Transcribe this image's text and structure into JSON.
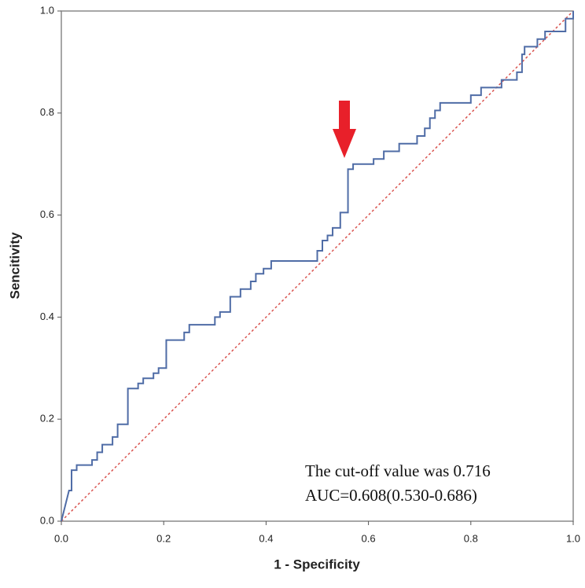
{
  "chart_data": {
    "type": "line",
    "xlabel": "1 - Specificity",
    "ylabel": "Sencitivity",
    "xlim": [
      0,
      1
    ],
    "ylim": [
      0,
      1
    ],
    "xticks": [
      {
        "value": 0,
        "label": "0.0"
      },
      0.2,
      0.4,
      0.6,
      0.8,
      {
        "value": 1,
        "label": "1.0"
      }
    ],
    "yticks": [
      {
        "value": 0,
        "label": "0.0"
      },
      0.2,
      0.4,
      0.6,
      0.8,
      {
        "value": 1,
        "label": "1.0"
      }
    ],
    "annotations": [
      "The cut-off value was 0.716",
      "AUC=0.608(0.530-0.686)"
    ],
    "series": [
      {
        "color": "#4f6ca6",
        "style": "step",
        "x": [
          0,
          0.005,
          0.01,
          0.015,
          0.02,
          0.02,
          0.03,
          0.03,
          0.06,
          0.06,
          0.07,
          0.07,
          0.08,
          0.08,
          0.1,
          0.1,
          0.11,
          0.11,
          0.13,
          0.13,
          0.15,
          0.15,
          0.16,
          0.16,
          0.18,
          0.18,
          0.19,
          0.19,
          0.205,
          0.205,
          0.24,
          0.24,
          0.25,
          0.25,
          0.3,
          0.3,
          0.31,
          0.31,
          0.33,
          0.33,
          0.35,
          0.35,
          0.37,
          0.37,
          0.38,
          0.38,
          0.395,
          0.395,
          0.41,
          0.41,
          0.5,
          0.5,
          0.51,
          0.51,
          0.52,
          0.52,
          0.53,
          0.53,
          0.545,
          0.545,
          0.56,
          0.56,
          0.57,
          0.57,
          0.61,
          0.61,
          0.63,
          0.63,
          0.66,
          0.66,
          0.695,
          0.695,
          0.71,
          0.71,
          0.72,
          0.72,
          0.73,
          0.73,
          0.74,
          0.74,
          0.8,
          0.8,
          0.82,
          0.82,
          0.86,
          0.86,
          0.89,
          0.89,
          0.9,
          0.9,
          0.905,
          0.905,
          0.93,
          0.93,
          0.945,
          0.945,
          0.985,
          0.985,
          1,
          1
        ],
        "values": [
          0,
          0.02,
          0.04,
          0.06,
          0.06,
          0.1,
          0.1,
          0.11,
          0.11,
          0.12,
          0.12,
          0.135,
          0.135,
          0.15,
          0.15,
          0.165,
          0.165,
          0.19,
          0.19,
          0.26,
          0.26,
          0.27,
          0.27,
          0.28,
          0.28,
          0.29,
          0.29,
          0.3,
          0.3,
          0.355,
          0.355,
          0.37,
          0.37,
          0.385,
          0.385,
          0.4,
          0.4,
          0.41,
          0.41,
          0.44,
          0.44,
          0.455,
          0.455,
          0.47,
          0.47,
          0.485,
          0.485,
          0.495,
          0.495,
          0.51,
          0.51,
          0.53,
          0.53,
          0.55,
          0.55,
          0.56,
          0.56,
          0.575,
          0.575,
          0.605,
          0.605,
          0.69,
          0.69,
          0.7,
          0.7,
          0.71,
          0.71,
          0.725,
          0.725,
          0.74,
          0.74,
          0.755,
          0.755,
          0.77,
          0.77,
          0.79,
          0.79,
          0.805,
          0.805,
          0.82,
          0.82,
          0.835,
          0.835,
          0.85,
          0.85,
          0.865,
          0.865,
          0.88,
          0.88,
          0.915,
          0.915,
          0.93,
          0.93,
          0.945,
          0.945,
          0.96,
          0.96,
          0.985,
          0.985,
          1
        ]
      },
      {
        "color": "#d9534f",
        "style": "dashed",
        "x": [
          0,
          1
        ],
        "values": [
          0,
          1
        ]
      }
    ]
  }
}
